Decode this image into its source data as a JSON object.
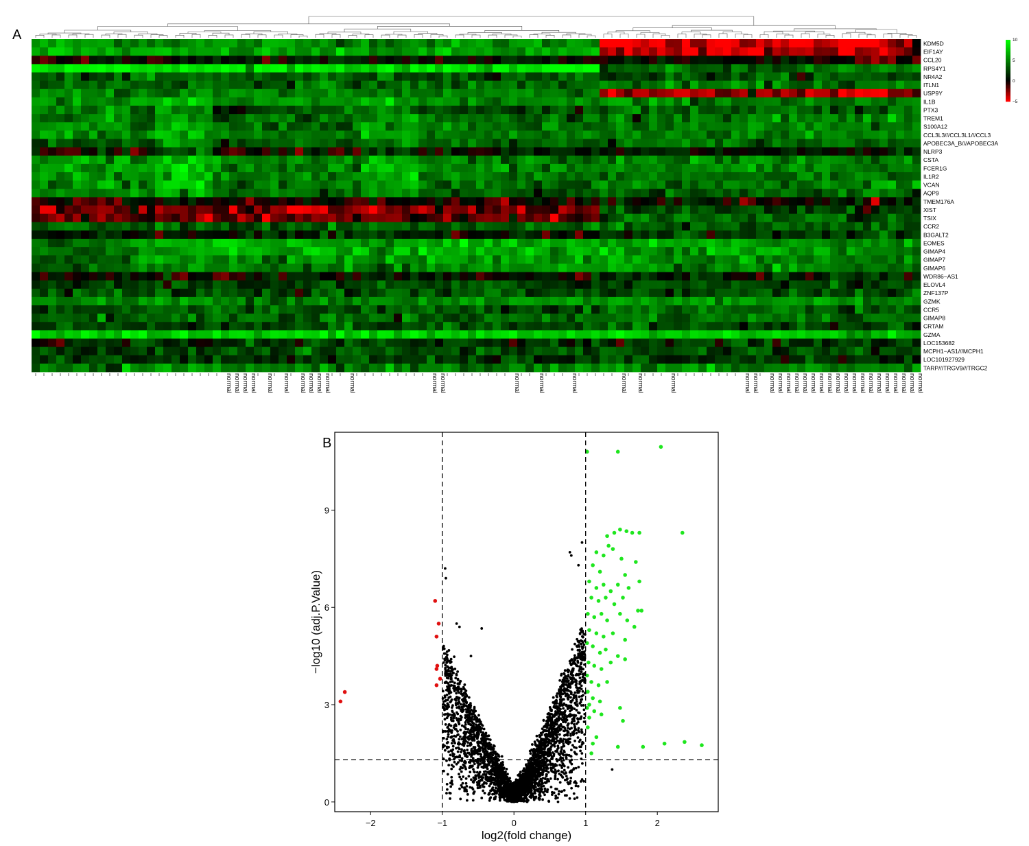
{
  "figure": {
    "panel_a_letter": "A",
    "panel_b_letter": "B"
  },
  "chart_data": [
    {
      "type": "heatmap",
      "panel": "A",
      "title": "",
      "row_labels": [
        "KDM5D",
        "EIF1AY",
        "CCL20",
        "RPS4Y1",
        "NR4A2",
        "ITLN1",
        "USP9Y",
        "IL1B",
        "PTX3",
        "TREM1",
        "S100A12",
        "CCL3L3///CCL3L1///CCL3",
        "APOBEC3A_B///APOBEC3A",
        "NLRP3",
        "CSTA",
        "FCER1G",
        "IL1R2",
        "VCAN",
        "AQP9",
        "TMEM176A",
        "XIST",
        "TSIX",
        "CCR2",
        "B3GALT2",
        "EOMES",
        "GIMAP4",
        "GIMAP7",
        "GIMAP6",
        "WDR86−AS1",
        "ELOVL4",
        "ZNF137P",
        "GZMK",
        "CCR5",
        "GIMAP8",
        "CRTAM",
        "GZMA",
        "LOC153682",
        "MCPH1−AS1///MCPH1",
        "LOC101927929",
        "TARP///TRGV9///TRGC2"
      ],
      "column_count": 108,
      "cluster_split_column": 69,
      "column_labels_visible": "normal",
      "normal_label_columns": [
        23,
        24,
        25,
        26,
        28,
        30,
        32,
        33,
        34,
        35,
        38,
        48,
        49,
        58,
        61,
        65,
        71,
        73,
        77,
        86,
        87,
        89,
        90,
        91,
        92,
        93,
        94,
        95,
        96,
        97,
        98,
        99,
        100,
        101,
        102,
        103,
        104,
        105,
        106,
        107
      ],
      "color_scale": {
        "low": -5,
        "mid": 0,
        "high": 10,
        "low_color": "#ff0000",
        "mid_color": "#000000",
        "high_color": "#00ff00",
        "ticks": [
          "10",
          "5",
          "0",
          "−5"
        ]
      },
      "row_profiles": [
        [
          6,
          5.5,
          -4.5,
          -1.5
        ],
        [
          6.5,
          6,
          -4,
          -1
        ],
        [
          -0.5,
          0.5,
          0.5,
          -0.5
        ],
        [
          9.5,
          9,
          4,
          5
        ],
        [
          3,
          3.5,
          3,
          3
        ],
        [
          4,
          4,
          4.5,
          4
        ],
        [
          5,
          5,
          -3,
          -2
        ],
        [
          5,
          5,
          5,
          4
        ],
        [
          4.5,
          3,
          4,
          3.5
        ],
        [
          5,
          4,
          5,
          4.5
        ],
        [
          5,
          4,
          4.5,
          4.5
        ],
        [
          5.5,
          4.5,
          5,
          5
        ],
        [
          3.5,
          3.5,
          4,
          4
        ],
        [
          0.5,
          0.5,
          0.5,
          0.5
        ],
        [
          5.5,
          4.5,
          5,
          5
        ],
        [
          6,
          5,
          5,
          5
        ],
        [
          6,
          4.5,
          4.5,
          4.5
        ],
        [
          5.5,
          4.5,
          4.5,
          5
        ],
        [
          5,
          4,
          3,
          4
        ],
        [
          -0.5,
          0,
          0.5,
          0.5
        ],
        [
          -2,
          -2.5,
          3,
          2
        ],
        [
          -2,
          -2,
          4,
          3
        ],
        [
          3.5,
          3.5,
          3.5,
          3.5
        ],
        [
          1,
          1,
          2,
          2
        ],
        [
          4,
          6.5,
          6,
          5
        ],
        [
          4.5,
          6.5,
          6,
          5
        ],
        [
          4,
          6,
          5.5,
          5
        ],
        [
          3.5,
          5,
          5,
          4.5
        ],
        [
          -0.5,
          0,
          1,
          1
        ],
        [
          2,
          2.5,
          3,
          3
        ],
        [
          3,
          3,
          3,
          3
        ],
        [
          5,
          5.5,
          6,
          5.5
        ],
        [
          3,
          3.5,
          4,
          3.5
        ],
        [
          3.5,
          4,
          4.5,
          4
        ],
        [
          2.5,
          3,
          3,
          3
        ],
        [
          8,
          8,
          8,
          7
        ],
        [
          1,
          2,
          2,
          2
        ],
        [
          2,
          3,
          3,
          3
        ],
        [
          2,
          2,
          2,
          1
        ],
        [
          4,
          5,
          5,
          5
        ]
      ]
    },
    {
      "type": "scatter",
      "panel": "B",
      "title": "",
      "xlabel": "log2(fold change)",
      "ylabel": "−log10 (adj.P.Value)",
      "xlim": [
        -2.5,
        2.85
      ],
      "ylim": [
        -0.3,
        11.4
      ],
      "x_ticks": [
        "−2",
        "−1",
        "0",
        "1",
        "2"
      ],
      "x_tick_values": [
        -2,
        -1,
        0,
        1,
        2
      ],
      "y_ticks": [
        "0",
        "3",
        "6",
        "9"
      ],
      "y_tick_values": [
        0,
        3,
        6,
        9
      ],
      "threshold_lines": {
        "x": [
          -1,
          1
        ],
        "y": 1.3
      },
      "colors": {
        "up": "#1ee61e",
        "down": "#e01010",
        "ns": "#000000"
      },
      "series_down": [
        {
          "x": -2.36,
          "y": 3.39
        },
        {
          "x": -2.42,
          "y": 3.1
        },
        {
          "x": -1.1,
          "y": 6.2
        },
        {
          "x": -1.05,
          "y": 5.5
        },
        {
          "x": -1.08,
          "y": 5.1
        },
        {
          "x": -1.07,
          "y": 4.2
        },
        {
          "x": -1.08,
          "y": 4.1
        },
        {
          "x": -1.03,
          "y": 3.8
        },
        {
          "x": -1.08,
          "y": 3.6
        }
      ],
      "series_up": [
        {
          "x": 1.02,
          "y": 10.8
        },
        {
          "x": 1.45,
          "y": 10.8
        },
        {
          "x": 2.05,
          "y": 10.95
        },
        {
          "x": 2.35,
          "y": 8.3
        },
        {
          "x": 1.48,
          "y": 8.4
        },
        {
          "x": 1.4,
          "y": 8.3
        },
        {
          "x": 1.57,
          "y": 8.35
        },
        {
          "x": 1.65,
          "y": 8.3
        },
        {
          "x": 1.75,
          "y": 8.3
        },
        {
          "x": 1.3,
          "y": 8.2
        },
        {
          "x": 1.32,
          "y": 7.9
        },
        {
          "x": 1.15,
          "y": 7.7
        },
        {
          "x": 1.25,
          "y": 7.6
        },
        {
          "x": 1.38,
          "y": 7.8
        },
        {
          "x": 1.5,
          "y": 7.5
        },
        {
          "x": 1.7,
          "y": 7.4
        },
        {
          "x": 1.1,
          "y": 7.3
        },
        {
          "x": 1.2,
          "y": 7.1
        },
        {
          "x": 1.55,
          "y": 7.0
        },
        {
          "x": 1.75,
          "y": 6.8
        },
        {
          "x": 1.05,
          "y": 6.8
        },
        {
          "x": 1.15,
          "y": 6.6
        },
        {
          "x": 1.25,
          "y": 6.7
        },
        {
          "x": 1.35,
          "y": 6.5
        },
        {
          "x": 1.45,
          "y": 6.7
        },
        {
          "x": 1.6,
          "y": 6.6
        },
        {
          "x": 1.08,
          "y": 6.3
        },
        {
          "x": 1.18,
          "y": 6.2
        },
        {
          "x": 1.28,
          "y": 6.3
        },
        {
          "x": 1.4,
          "y": 6.1
        },
        {
          "x": 1.52,
          "y": 6.3
        },
        {
          "x": 1.73,
          "y": 5.9
        },
        {
          "x": 1.78,
          "y": 5.9
        },
        {
          "x": 1.03,
          "y": 5.8
        },
        {
          "x": 1.12,
          "y": 5.7
        },
        {
          "x": 1.22,
          "y": 5.8
        },
        {
          "x": 1.3,
          "y": 5.6
        },
        {
          "x": 1.48,
          "y": 5.8
        },
        {
          "x": 1.58,
          "y": 5.6
        },
        {
          "x": 1.68,
          "y": 5.4
        },
        {
          "x": 1.05,
          "y": 5.3
        },
        {
          "x": 1.15,
          "y": 5.2
        },
        {
          "x": 1.25,
          "y": 5.1
        },
        {
          "x": 1.38,
          "y": 5.2
        },
        {
          "x": 1.55,
          "y": 5.0
        },
        {
          "x": 1.02,
          "y": 4.9
        },
        {
          "x": 1.1,
          "y": 4.8
        },
        {
          "x": 1.2,
          "y": 4.6
        },
        {
          "x": 1.28,
          "y": 4.7
        },
        {
          "x": 1.45,
          "y": 4.5
        },
        {
          "x": 1.04,
          "y": 4.3
        },
        {
          "x": 1.12,
          "y": 4.2
        },
        {
          "x": 1.22,
          "y": 4.1
        },
        {
          "x": 1.55,
          "y": 4.4
        },
        {
          "x": 1.02,
          "y": 3.9
        },
        {
          "x": 1.08,
          "y": 3.7
        },
        {
          "x": 1.18,
          "y": 3.6
        },
        {
          "x": 1.3,
          "y": 3.7
        },
        {
          "x": 1.03,
          "y": 3.4
        },
        {
          "x": 1.1,
          "y": 3.2
        },
        {
          "x": 1.2,
          "y": 3.1
        },
        {
          "x": 1.05,
          "y": 3.0
        },
        {
          "x": 1.02,
          "y": 2.9
        },
        {
          "x": 1.12,
          "y": 2.8
        },
        {
          "x": 1.22,
          "y": 2.7
        },
        {
          "x": 1.48,
          "y": 2.9
        },
        {
          "x": 1.52,
          "y": 2.5
        },
        {
          "x": 1.05,
          "y": 2.6
        },
        {
          "x": 1.15,
          "y": 2.0
        },
        {
          "x": 1.1,
          "y": 1.8
        },
        {
          "x": 1.45,
          "y": 1.7
        },
        {
          "x": 1.8,
          "y": 1.7
        },
        {
          "x": 2.1,
          "y": 1.8
        },
        {
          "x": 2.38,
          "y": 1.85
        },
        {
          "x": 2.62,
          "y": 1.75
        },
        {
          "x": 1.08,
          "y": 1.5
        },
        {
          "x": 1.03,
          "y": 2.3
        },
        {
          "x": 1.35,
          "y": 4.3
        }
      ],
      "series_ns_extremes": [
        {
          "x": -0.96,
          "y": 7.2
        },
        {
          "x": -0.95,
          "y": 6.9
        },
        {
          "x": -0.8,
          "y": 5.5
        },
        {
          "x": -0.76,
          "y": 5.4
        },
        {
          "x": -0.45,
          "y": 5.35
        },
        {
          "x": 0.78,
          "y": 7.7
        },
        {
          "x": 0.8,
          "y": 7.6
        },
        {
          "x": 0.95,
          "y": 8.0
        },
        {
          "x": 0.9,
          "y": 7.3
        },
        {
          "x": 1.37,
          "y": 1.0
        },
        {
          "x": -0.6,
          "y": 4.5
        }
      ]
    }
  ]
}
